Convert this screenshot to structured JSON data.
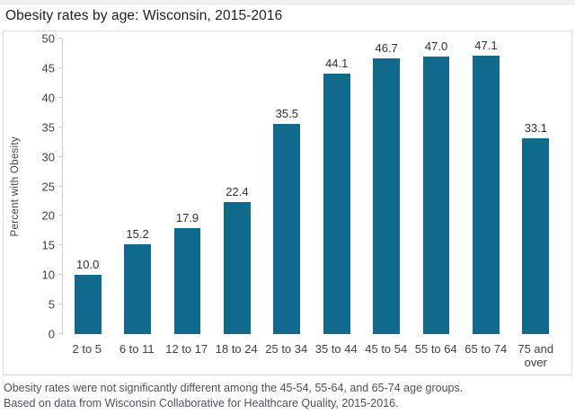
{
  "title": "Obesity rates by age: Wisconsin, 2015-2016",
  "footer": {
    "line1": "Obesity rates were not significantly different among the 45-54, 55-64, and 65-74 age groups.",
    "line2": "Based on data from Wisconsin Collaborative for Healthcare Quality, 2015-2016."
  },
  "colors": {
    "bar": "#106a8e",
    "axis_line": "#cdced3",
    "chart_border": "#d9d9dd",
    "title_text": "#1c1c26",
    "axis_text": "#3f3f46",
    "footer_text": "#50505a"
  },
  "chart_data": {
    "type": "bar",
    "title": "Obesity rates by age: Wisconsin, 2015-2016",
    "categories": [
      "2 to 5",
      "6 to 11",
      "12 to 17",
      "18 to 24",
      "25 to 34",
      "35 to 44",
      "45 to 54",
      "55 to 64",
      "65 to 74",
      "75 and over"
    ],
    "values": [
      10.0,
      15.2,
      17.9,
      22.4,
      35.5,
      44.1,
      46.7,
      47.0,
      47.1,
      33.1
    ],
    "data_labels": [
      "10.0",
      "15.2",
      "17.9",
      "22.4",
      "35.5",
      "44.1",
      "46.7",
      "47.0",
      "47.1",
      "33.1"
    ],
    "xlabel": "",
    "ylabel": "Percent with Obesity",
    "ylim": [
      0,
      50
    ],
    "yticks": [
      0,
      5,
      10,
      15,
      20,
      25,
      30,
      35,
      40,
      45,
      50
    ],
    "grid": false,
    "legend": false,
    "bar_color": "#106a8e"
  }
}
